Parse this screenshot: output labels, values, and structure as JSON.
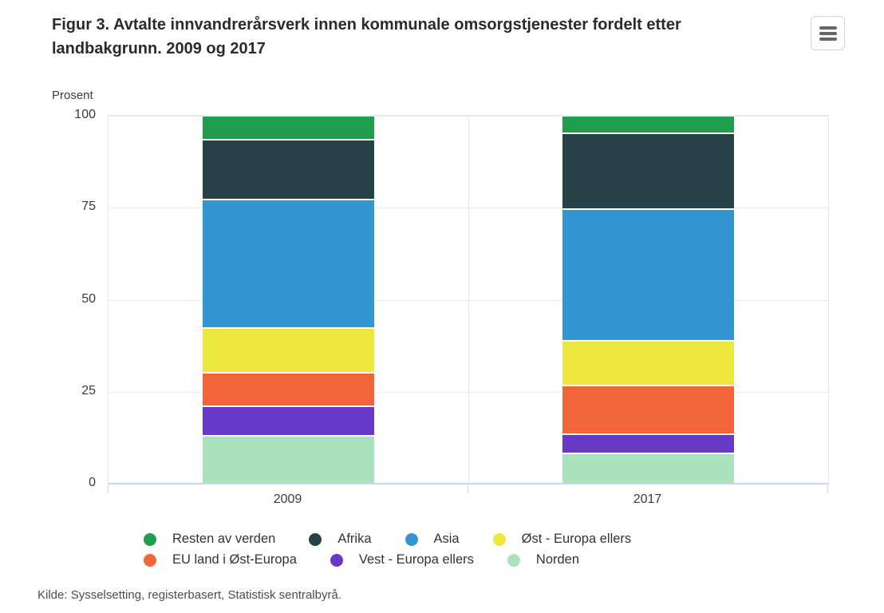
{
  "header": {
    "title": "Figur 3. Avtalte innvandrerårsverk innen kommunale omsorgstjenester fordelt etter landbakgrunn. 2009 og 2017"
  },
  "chart_data": {
    "type": "bar",
    "stacked": true,
    "stacking": "percent",
    "title": "Figur 3. Avtalte innvandrerårsverk innen kommunale omsorgstjenester fordelt etter landbakgrunn. 2009 og 2017",
    "ylabel": "Prosent",
    "xlabel": "",
    "categories": [
      "2009",
      "2017"
    ],
    "series": [
      {
        "name": "Resten av verden",
        "color": "#1f9e4d",
        "values": [
          6.5,
          4.7
        ]
      },
      {
        "name": "Afrika",
        "color": "#274247",
        "values": [
          16.2,
          20.7
        ]
      },
      {
        "name": "Asia",
        "color": "#3396d2",
        "values": [
          35.0,
          35.7
        ]
      },
      {
        "name": "Øst - Europa ellers",
        "color": "#ece83d",
        "values": [
          12.1,
          12.2
        ]
      },
      {
        "name": "EU land i Øst-Europa",
        "color": "#f2653a",
        "values": [
          9.2,
          13.2
        ]
      },
      {
        "name": "Vest - Europa ellers",
        "color": "#6639c7",
        "values": [
          8.0,
          5.3
        ]
      },
      {
        "name": "Norden",
        "color": "#a9e2bd",
        "values": [
          13.0,
          8.2
        ]
      }
    ],
    "segment_order": "series listed top-to-bottom within each bar",
    "yticks": [
      0,
      25,
      50,
      75,
      100
    ],
    "ylim": [
      0,
      100
    ],
    "grid": true,
    "legend_position": "bottom",
    "axis_line_color": "#ccd6eb",
    "gridline_color": "#e7e7e7"
  },
  "footer": {
    "source": "Kilde: Sysselsetting, registerbasert, Statistisk sentralbyrå."
  }
}
